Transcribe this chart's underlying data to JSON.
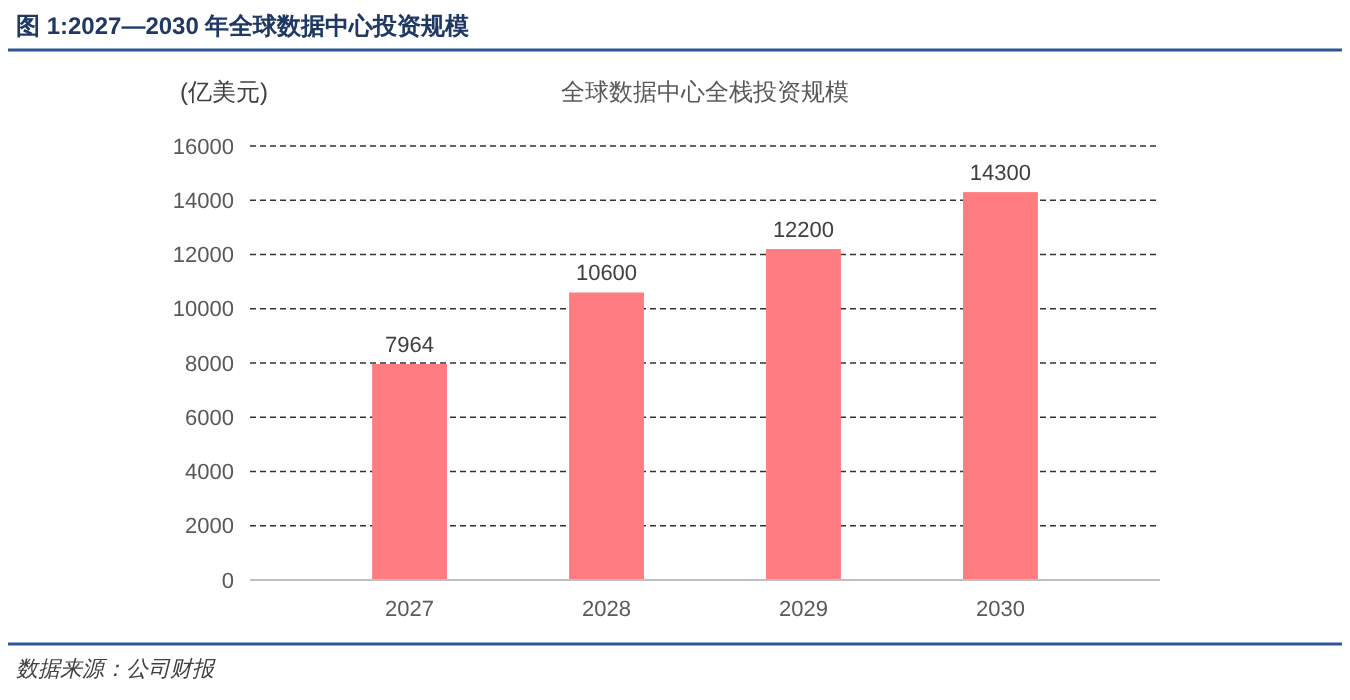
{
  "chart_data": {
    "type": "bar",
    "title": "图 1:2027—2030 年全球数据中心投资规模",
    "subtitle": "全球数据中心全栈投资规模",
    "ylabel": "(亿美元)",
    "categories": [
      "2027",
      "2028",
      "2029",
      "2030"
    ],
    "values": [
      7964,
      10600,
      12200,
      14300
    ],
    "color": "#ff7c80",
    "ylim": [
      0,
      16000
    ],
    "yticks": [
      0,
      2000,
      4000,
      6000,
      8000,
      10000,
      12000,
      14000,
      16000
    ],
    "grid": "y",
    "data_labels": true,
    "annotations": [
      "数据来源：公司财报"
    ]
  }
}
